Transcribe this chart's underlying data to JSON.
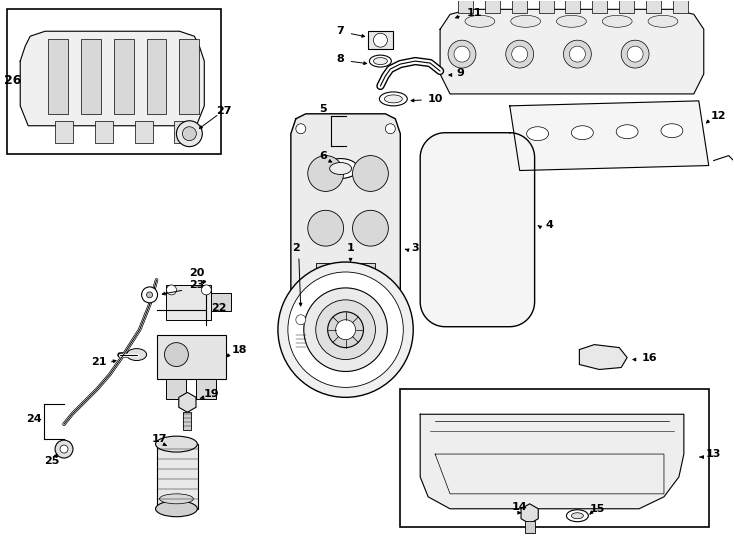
{
  "background_color": "#ffffff",
  "line_color": "#000000",
  "text_color": "#000000",
  "fig_width": 7.34,
  "fig_height": 5.4,
  "dpi": 100
}
